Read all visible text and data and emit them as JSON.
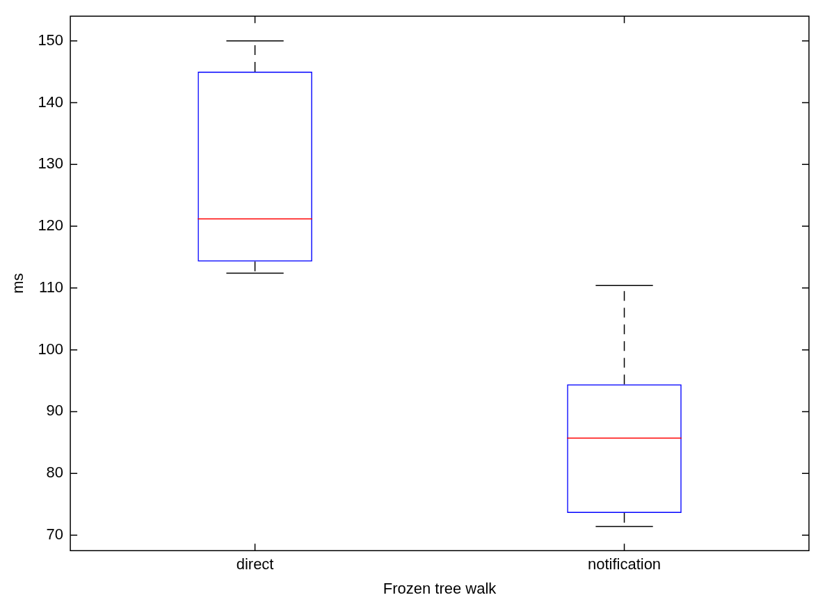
{
  "chart_data": {
    "type": "box",
    "xlabel": "Frozen tree walk",
    "ylabel": "ms",
    "categories": [
      "direct",
      "notification"
    ],
    "boxes": [
      {
        "low": 112.4,
        "q1": 114.3,
        "median": 121.2,
        "q3": 145,
        "high": 150
      },
      {
        "low": 71.4,
        "q1": 73.6,
        "median": 85.7,
        "q3": 94.4,
        "high": 110.4
      }
    ],
    "color": "#0000ff",
    "ylim": [
      67.5,
      154
    ],
    "yticks": [
      70,
      80,
      90,
      100,
      110,
      120,
      130,
      140,
      150
    ],
    "grid": false,
    "legend": false
  }
}
